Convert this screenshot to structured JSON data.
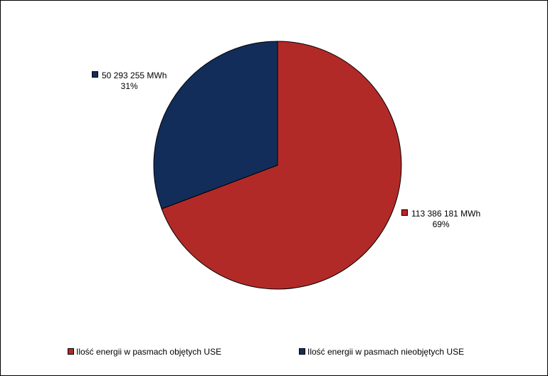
{
  "chart_data": {
    "type": "pie",
    "unit": "MWh",
    "slices": [
      {
        "name": "Ilość energii w pasmach objętych USE",
        "value": 113386181,
        "value_label": "113 386 181 MWh",
        "percent_label": "69%",
        "color": "#b22a27"
      },
      {
        "name": "Ilość energii w pasmach nieobjętych USE",
        "value": 50293255,
        "value_label": "50 293 255 MWh",
        "percent_label": "31%",
        "color": "#132d5b"
      }
    ],
    "start_angle_deg": 0,
    "direction": "clockwise",
    "legend_position": "bottom"
  }
}
